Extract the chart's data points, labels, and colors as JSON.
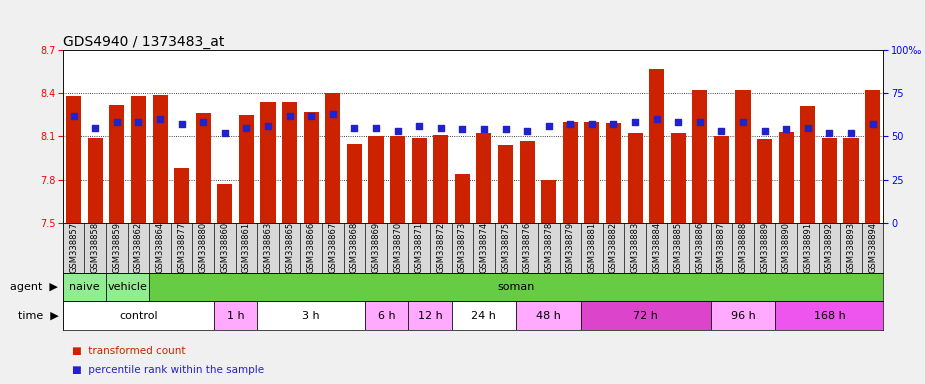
{
  "title": "GDS4940 / 1373483_at",
  "ylim_left": [
    7.5,
    8.7
  ],
  "ylim_right": [
    0,
    100
  ],
  "yticks_left": [
    7.5,
    7.8,
    8.1,
    8.4,
    8.7
  ],
  "yticks_right": [
    0,
    25,
    50,
    75,
    100
  ],
  "ytick_labels_right": [
    "0",
    "25",
    "50",
    "75",
    "100‰"
  ],
  "bar_color": "#cc2200",
  "dot_color": "#2222cc",
  "samples": [
    "GSM338857",
    "GSM338858",
    "GSM338859",
    "GSM338862",
    "GSM338864",
    "GSM338877",
    "GSM338880",
    "GSM338860",
    "GSM338861",
    "GSM338863",
    "GSM338865",
    "GSM338866",
    "GSM338867",
    "GSM338868",
    "GSM338869",
    "GSM338870",
    "GSM338871",
    "GSM338872",
    "GSM338873",
    "GSM338874",
    "GSM338875",
    "GSM338876",
    "GSM338878",
    "GSM338879",
    "GSM338881",
    "GSM338882",
    "GSM338883",
    "GSM338884",
    "GSM338885",
    "GSM338886",
    "GSM338887",
    "GSM338888",
    "GSM338889",
    "GSM338890",
    "GSM338891",
    "GSM338892",
    "GSM338893",
    "GSM338894"
  ],
  "bar_heights": [
    8.38,
    8.09,
    8.32,
    8.38,
    8.39,
    7.88,
    8.26,
    7.77,
    8.25,
    8.34,
    8.34,
    8.27,
    8.4,
    8.05,
    8.1,
    8.1,
    8.09,
    8.11,
    7.84,
    8.12,
    8.04,
    8.07,
    7.8,
    8.2,
    8.2,
    8.19,
    8.12,
    8.57,
    8.12,
    8.42,
    8.1,
    8.42,
    8.08,
    8.13,
    8.31,
    8.09,
    8.09,
    8.42
  ],
  "dot_values": [
    62,
    55,
    58,
    58,
    60,
    57,
    58,
    52,
    55,
    56,
    62,
    62,
    63,
    55,
    55,
    53,
    56,
    55,
    54,
    54,
    54,
    53,
    56,
    57,
    57,
    57,
    58,
    60,
    58,
    58,
    53,
    58,
    53,
    54,
    55,
    52,
    52,
    57
  ],
  "agent_spans": [
    {
      "label": "naive",
      "start": 0,
      "end": 2,
      "color": "#90ee90"
    },
    {
      "label": "vehicle",
      "start": 2,
      "end": 4,
      "color": "#90ee90"
    },
    {
      "label": "soman",
      "start": 4,
      "end": 38,
      "color": "#66cc44"
    }
  ],
  "time_spans": [
    {
      "label": "control",
      "start": 0,
      "end": 7,
      "color": "#ffffff"
    },
    {
      "label": "1 h",
      "start": 7,
      "end": 9,
      "color": "#ffaaff"
    },
    {
      "label": "3 h",
      "start": 9,
      "end": 14,
      "color": "#ffffff"
    },
    {
      "label": "6 h",
      "start": 14,
      "end": 16,
      "color": "#ffaaff"
    },
    {
      "label": "12 h",
      "start": 16,
      "end": 18,
      "color": "#ffaaff"
    },
    {
      "label": "24 h",
      "start": 18,
      "end": 21,
      "color": "#ffffff"
    },
    {
      "label": "48 h",
      "start": 21,
      "end": 24,
      "color": "#ffaaff"
    },
    {
      "label": "72 h",
      "start": 24,
      "end": 30,
      "color": "#dd44cc"
    },
    {
      "label": "96 h",
      "start": 30,
      "end": 33,
      "color": "#ffaaff"
    },
    {
      "label": "168 h",
      "start": 33,
      "end": 38,
      "color": "#ee55ee"
    }
  ],
  "bar_width": 0.7,
  "fig_bg": "#f0f0f0",
  "plot_bg": "#ffffff",
  "xtick_bg": "#d8d8d8",
  "font_size_title": 10,
  "font_size_ticks": 7,
  "font_size_xtick": 6,
  "font_size_annot": 8
}
